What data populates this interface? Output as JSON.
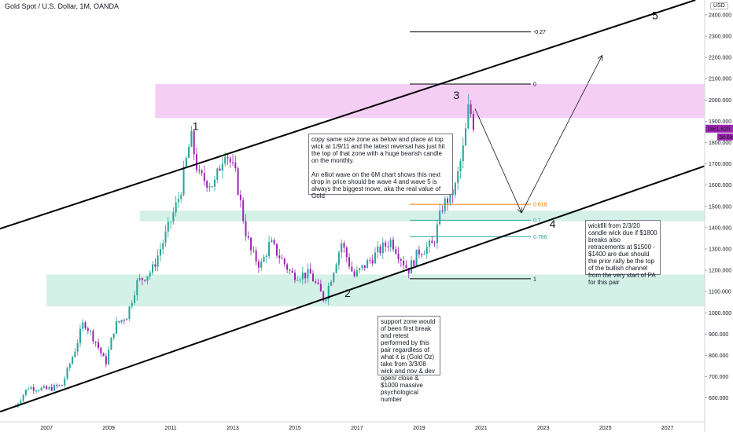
{
  "header": {
    "title": "Gold Spot / U.S. Dollar, 1M, OANDA",
    "currency": "USD"
  },
  "colors": {
    "bullish": "#26a69a",
    "bearish": "#9c27b0",
    "pink_zone": "#f3c6f5",
    "green_zone": "#cdeee4",
    "fib_0618": "#f57c00",
    "fib_green": "#26a69a",
    "price_tag": "#9c27b0"
  },
  "price_tags": {
    "current": "1861.620",
    "countdown": "3d 6h"
  },
  "wave_labels": [
    "1",
    "2",
    "3",
    "4",
    "5"
  ],
  "fib_levels": [
    {
      "label": "-0.27",
      "price": 2320,
      "color": "#000000",
      "from_year": 2018.7,
      "to_year": 2022.6
    },
    {
      "label": "0",
      "price": 2075,
      "color": "#000000",
      "from_year": 2018.7,
      "to_year": 2022.6
    },
    {
      "label": "0.618",
      "price": 1510,
      "color": "#f57c00",
      "from_year": 2018.7,
      "to_year": 2022.6
    },
    {
      "label": "0.7",
      "price": 1435,
      "color": "#26a69a",
      "from_year": 2018.7,
      "to_year": 2022.6
    },
    {
      "label": "0.786",
      "price": 1358,
      "color": "#26a69a",
      "from_year": 2018.7,
      "to_year": 2022.6
    },
    {
      "label": "1",
      "price": 1160,
      "color": "#000000",
      "from_year": 2018.7,
      "to_year": 2022.6
    }
  ],
  "notes": {
    "top": "copy same size zone as below and place at top wick at 1/9/11 and the latest reversal has just hit the top of that zone with a huge bearish candle on the monthly.\n\nAn elliot wave on the 6M chart shows this next drop in price should be wave 4 and wave 5 is always the biggest move, aka the real value of Gold",
    "right": "wickfill from 2/3/20 candle wick due if $1800 breaks also retracements at $1500 - $1400 are due should the prior rally be the top of the bullish channel from the very start of PA for this pair",
    "bottom": "support zone would of been first break and retest performed by this pair regardless of what it is (Gold Oz) take from 3/3/08 wick and nov & dev open/ close & $1000 massive psychological number"
  },
  "chart_data": {
    "type": "candlestick",
    "title": "Gold Spot / U.S. Dollar, 1M, OANDA",
    "x_ticks": [
      "2007",
      "2009",
      "2011",
      "2013",
      "2015",
      "2017",
      "2019",
      "2021",
      "2023",
      "2025",
      "2027"
    ],
    "y_ticks": [
      "600.000",
      "700.000",
      "800.000",
      "900.000",
      "1000.000",
      "1100.000",
      "1200.000",
      "1300.000",
      "1400.000",
      "1500.000",
      "1600.000",
      "1700.000",
      "1800.000",
      "1900.000",
      "2000.000",
      "2100.000",
      "2200.000",
      "2300.000",
      "2400.000"
    ],
    "ylim": [
      510,
      2470
    ],
    "xlim": [
      2005.5,
      2028.2
    ],
    "zones": [
      {
        "name": "top resistance zone",
        "y_from": 1915,
        "y_to": 2075,
        "x_from": 2010.5,
        "x_to": 2028.2,
        "color": "pink"
      },
      {
        "name": "mid support zone",
        "y_from": 1430,
        "y_to": 1480,
        "x_from": 2010.0,
        "x_to": 2028.2,
        "color": "green"
      },
      {
        "name": "lower support zone",
        "y_from": 1030,
        "y_to": 1180,
        "x_from": 2007.0,
        "x_to": 2028.2,
        "color": "green"
      }
    ],
    "trendlines": [
      {
        "name": "upper channel",
        "from": [
          2005.5,
          1395
        ],
        "to": [
          2027.9,
          2470
        ]
      },
      {
        "name": "lower channel",
        "from": [
          2005.5,
          535
        ],
        "to": [
          2028.2,
          1690
        ]
      }
    ],
    "projection": [
      [
        2020.8,
        1960
      ],
      [
        2022.3,
        1470
      ],
      [
        2024.9,
        2210
      ]
    ],
    "wave_points": [
      {
        "label": "1",
        "x": 2011.8,
        "y": 1860
      },
      {
        "label": "2",
        "x": 2016.7,
        "y": 1075
      },
      {
        "label": "3",
        "x": 2020.2,
        "y": 2005
      },
      {
        "label": "4",
        "x": 2023.3,
        "y": 1400
      },
      {
        "label": "5",
        "x": 2026.6,
        "y": 2380
      }
    ],
    "anchors": [
      [
        2006.0,
        560
      ],
      [
        2006.4,
        650
      ],
      [
        2007.0,
        640
      ],
      [
        2007.5,
        660
      ],
      [
        2007.9,
        820
      ],
      [
        2008.2,
        960
      ],
      [
        2008.6,
        860
      ],
      [
        2008.9,
        760
      ],
      [
        2009.2,
        940
      ],
      [
        2009.6,
        990
      ],
      [
        2009.9,
        1140
      ],
      [
        2010.4,
        1200
      ],
      [
        2010.9,
        1390
      ],
      [
        2011.3,
        1560
      ],
      [
        2011.65,
        1830
      ],
      [
        2011.9,
        1640
      ],
      [
        2012.4,
        1600
      ],
      [
        2012.75,
        1770
      ],
      [
        2013.1,
        1640
      ],
      [
        2013.4,
        1390
      ],
      [
        2013.6,
        1280
      ],
      [
        2013.9,
        1220
      ],
      [
        2014.2,
        1330
      ],
      [
        2014.9,
        1180
      ],
      [
        2015.5,
        1180
      ],
      [
        2015.95,
        1060
      ],
      [
        2016.5,
        1330
      ],
      [
        2016.9,
        1170
      ],
      [
        2017.7,
        1290
      ],
      [
        2018.1,
        1340
      ],
      [
        2018.65,
        1200
      ],
      [
        2019.0,
        1290
      ],
      [
        2019.45,
        1320
      ],
      [
        2019.75,
        1500
      ],
      [
        2020.15,
        1580
      ],
      [
        2020.45,
        1790
      ],
      [
        2020.6,
        1975
      ],
      [
        2020.75,
        1890
      ]
    ]
  }
}
